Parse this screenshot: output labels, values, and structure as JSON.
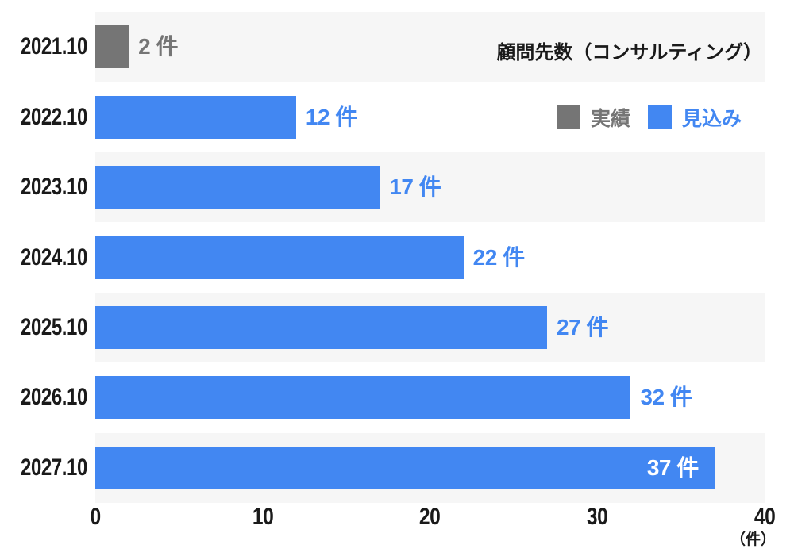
{
  "chart_data": {
    "type": "bar",
    "orientation": "horizontal",
    "title": "顧問先数（コンサルティング）",
    "axis_unit_label": "（件）",
    "categories": [
      "2021.10",
      "2022.10",
      "2023.10",
      "2024.10",
      "2025.10",
      "2026.10",
      "2027.10"
    ],
    "values": [
      2,
      12,
      17,
      22,
      27,
      32,
      37
    ],
    "value_labels": [
      "2 件",
      "12 件",
      "17 件",
      "22 件",
      "27 件",
      "32 件",
      "37 件"
    ],
    "series_per_row": [
      "実績",
      "見込み",
      "見込み",
      "見込み",
      "見込み",
      "見込み",
      "見込み"
    ],
    "xlim": [
      0,
      40
    ],
    "xticks": [
      "0",
      "10",
      "20",
      "30",
      "40"
    ],
    "grid": false,
    "legend_position": "top-right",
    "legend": [
      {
        "label": "実績",
        "color": "#757575"
      },
      {
        "label": "見込み",
        "color": "#4287f2"
      }
    ],
    "colors": {
      "row_stripe": "#f6f6f6",
      "inside_value_label": "#ffffff",
      "text": "#1a1a1a"
    }
  }
}
